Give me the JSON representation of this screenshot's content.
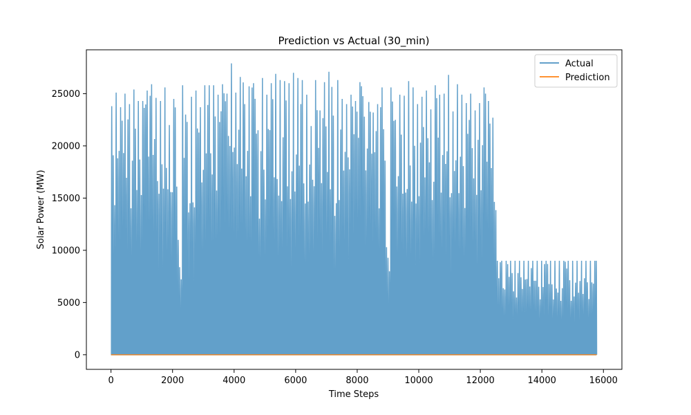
{
  "chart_data": {
    "type": "line",
    "title": "Prediction vs Actual (30_min)",
    "xlabel": "Time Steps",
    "ylabel": "Solar Power (MW)",
    "xlim": [
      -800,
      16600
    ],
    "ylim": [
      -1400,
      29200
    ],
    "xticks": [
      0,
      2000,
      4000,
      6000,
      8000,
      10000,
      12000,
      14000,
      16000
    ],
    "yticks": [
      0,
      5000,
      10000,
      15000,
      20000,
      25000
    ],
    "xtick_labels": [
      "0",
      "2000",
      "4000",
      "6000",
      "8000",
      "10000",
      "12000",
      "14000",
      "16000"
    ],
    "ytick_labels": [
      "0",
      "5000",
      "10000",
      "15000",
      "20000",
      "25000"
    ],
    "legend_position": "upper-right",
    "grid": false,
    "series": [
      {
        "name": "Actual",
        "color": "#1f77b4",
        "opacity": 0.7,
        "x_start": 0,
        "x_end": 15780,
        "daily_period": 48,
        "daily_peaks_sample_every_3_days": [
          23800,
          25100,
          23700,
          25000,
          24000,
          25400,
          24300,
          24300,
          25300,
          25900,
          24600,
          24300,
          25600,
          22000,
          24500,
          11000,
          25800,
          22300,
          24700,
          25300,
          23700,
          25800,
          25800,
          25800,
          24900,
          25900,
          25000,
          27900,
          25100,
          26600,
          24000,
          25700,
          26000,
          21500,
          26500,
          24900,
          26000,
          26900,
          26300,
          26200,
          26000,
          27000,
          26500,
          26300,
          24900,
          21900,
          26300,
          23400,
          26100,
          27100,
          22900,
          26300,
          24500,
          24000,
          24900,
          24300,
          26100,
          22800,
          24200,
          23200,
          24000,
          25600,
          10300,
          25600,
          22500,
          24900,
          24800,
          26200,
          25600,
          24000,
          24700,
          25300,
          23500,
          25800,
          24900,
          25000,
          26800,
          23300,
          25900,
          24900,
          24100,
          25000,
          23400,
          24100,
          25600,
          24300,
          22700,
          9000
        ]
      },
      {
        "name": "Prediction",
        "color": "#ff7f0e",
        "opacity": 0.7,
        "x": [
          0,
          15780
        ],
        "values": [
          0,
          0
        ]
      }
    ]
  }
}
